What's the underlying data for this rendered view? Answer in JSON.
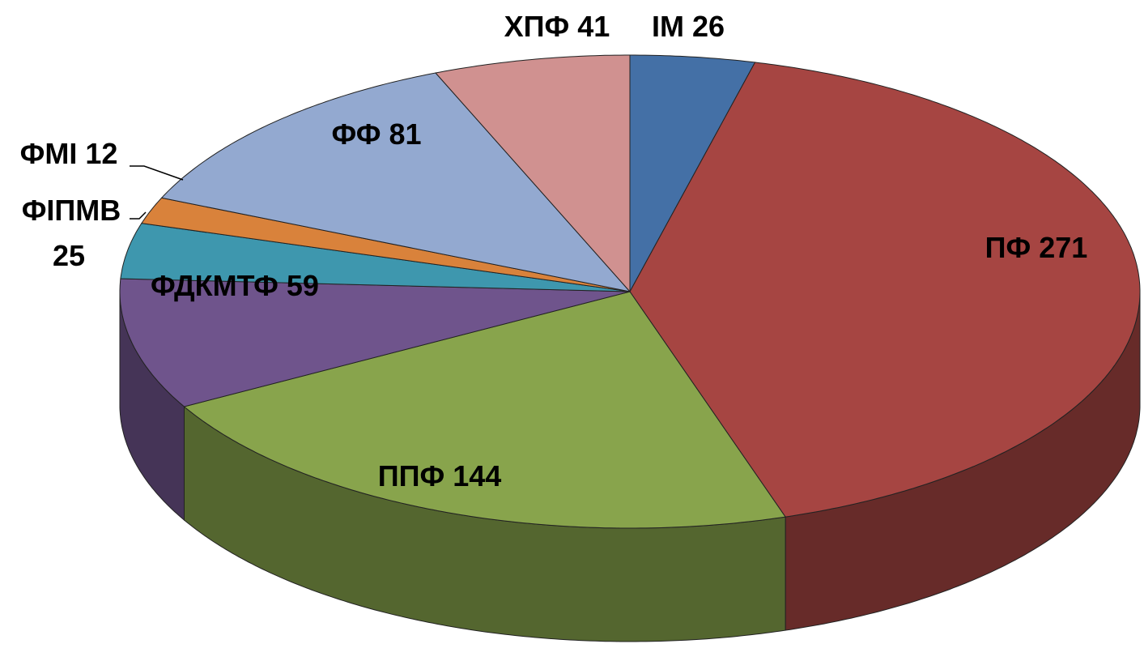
{
  "chart_data": {
    "type": "pie",
    "categories": [
      "ІМ",
      "ПФ",
      "ППФ",
      "ФДКМТФ",
      "ФІПМВ",
      "ФМІ",
      "ФФ",
      "ХПФ"
    ],
    "values": [
      26,
      271,
      144,
      59,
      25,
      12,
      81,
      41
    ],
    "colors": [
      "#4470a6",
      "#a64542",
      "#88a44c",
      "#6f548c",
      "#3e97ae",
      "#d9823b",
      "#93a9d0",
      "#d09190"
    ],
    "three_d": true
  }
}
